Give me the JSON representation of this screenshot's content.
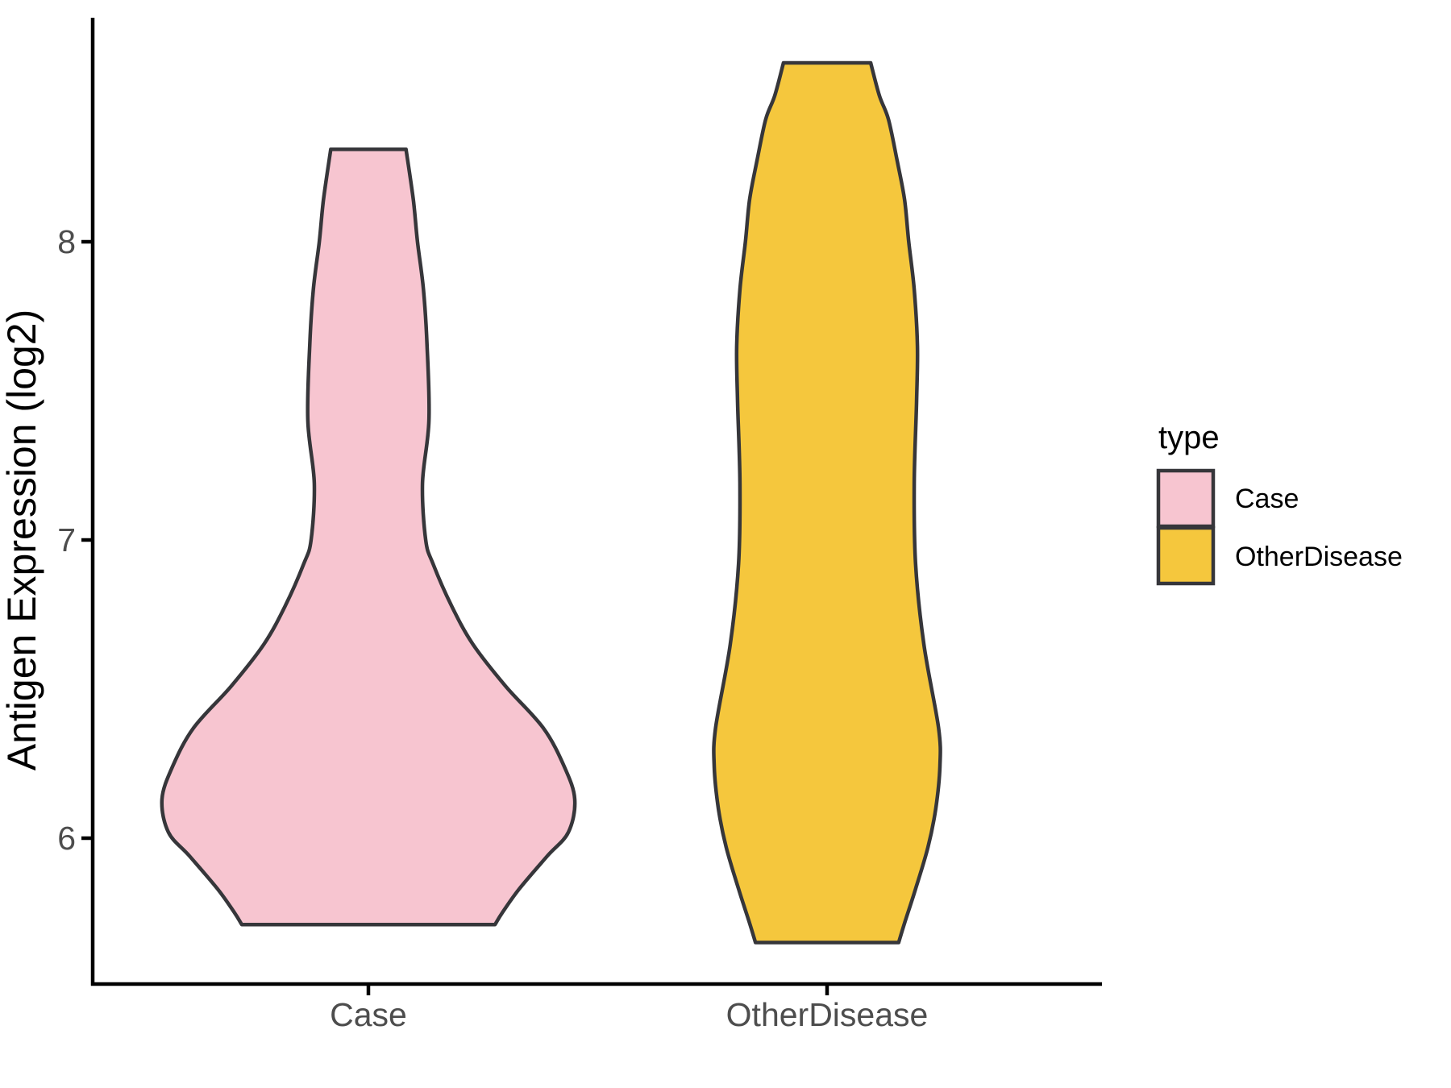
{
  "figure": {
    "background": "#ffffff",
    "axis_line_color": "#000000",
    "tick_text_color": "#4d4d4d",
    "violin_outline_color": "#36363a"
  },
  "y_axis": {
    "title": "Antigen Expression (log2)",
    "tick_labels": [
      "8",
      "7",
      "6"
    ]
  },
  "x_axis": {
    "tick_labels": [
      "Case",
      "OtherDisease"
    ]
  },
  "legend": {
    "title": "type",
    "items": [
      {
        "label": "Case",
        "color": "#F7C5D0"
      },
      {
        "label": "OtherDisease",
        "color": "#F5C73D"
      }
    ]
  },
  "chart_data": {
    "type": "violin",
    "title": "",
    "xlabel": "",
    "ylabel": "Antigen Expression (log2)",
    "categories": [
      "Case",
      "OtherDisease"
    ],
    "yticks": [
      6,
      7,
      8
    ],
    "ylim": [
      5.51,
      8.75
    ],
    "grid": false,
    "legend_position": "right",
    "legend_title": "type",
    "series": [
      {
        "name": "Case",
        "color": "#F7C5D0",
        "outline": "#36363a",
        "value_range": [
          5.71,
          8.31
        ],
        "widest_at": 6.13,
        "profile": [
          [
            8.31,
            0.082
          ],
          [
            8.14,
            0.098
          ],
          [
            8.0,
            0.107
          ],
          [
            7.84,
            0.12
          ],
          [
            7.65,
            0.128
          ],
          [
            7.4,
            0.132
          ],
          [
            7.19,
            0.118
          ],
          [
            7.0,
            0.125
          ],
          [
            6.92,
            0.141
          ],
          [
            6.78,
            0.181
          ],
          [
            6.65,
            0.228
          ],
          [
            6.51,
            0.299
          ],
          [
            6.37,
            0.381
          ],
          [
            6.24,
            0.427
          ],
          [
            6.13,
            0.45
          ],
          [
            6.02,
            0.436
          ],
          [
            5.94,
            0.39
          ],
          [
            5.83,
            0.329
          ],
          [
            5.75,
            0.292
          ],
          [
            5.71,
            0.276
          ]
        ]
      },
      {
        "name": "OtherDisease",
        "color": "#F5C73D",
        "outline": "#36363a",
        "value_range": [
          5.65,
          8.6
        ],
        "widest_at": 6.24,
        "profile": [
          [
            8.6,
            0.095
          ],
          [
            8.49,
            0.114
          ],
          [
            8.41,
            0.134
          ],
          [
            8.27,
            0.153
          ],
          [
            8.14,
            0.169
          ],
          [
            8.0,
            0.178
          ],
          [
            7.84,
            0.19
          ],
          [
            7.65,
            0.197
          ],
          [
            7.46,
            0.195
          ],
          [
            7.19,
            0.19
          ],
          [
            6.92,
            0.193
          ],
          [
            6.65,
            0.211
          ],
          [
            6.37,
            0.243
          ],
          [
            6.24,
            0.246
          ],
          [
            6.1,
            0.237
          ],
          [
            5.97,
            0.22
          ],
          [
            5.83,
            0.193
          ],
          [
            5.72,
            0.17
          ],
          [
            5.65,
            0.156
          ]
        ]
      }
    ]
  }
}
